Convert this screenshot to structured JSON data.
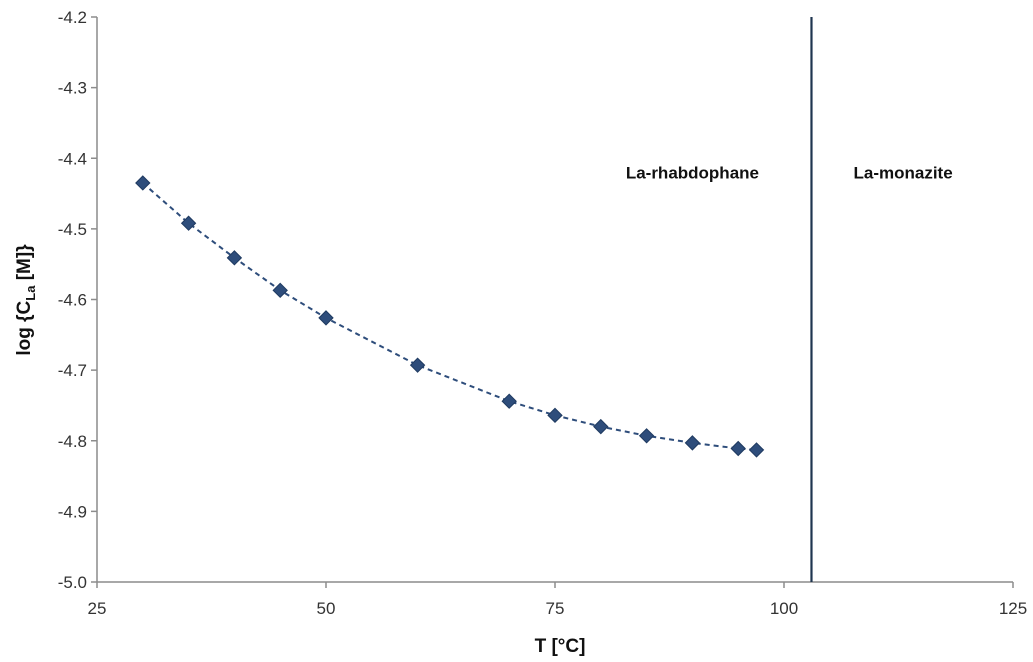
{
  "chart_data": {
    "type": "scatter",
    "title": "",
    "xlabel": "T [°C]",
    "ylabel": {
      "prefix": "log {C",
      "subscript": "La",
      "suffix": " [M]}"
    },
    "xlim": [
      25,
      125
    ],
    "ylim": [
      -5.0,
      -4.2
    ],
    "xticks": [
      25,
      50,
      75,
      100,
      125
    ],
    "yticks": [
      -5.0,
      -4.9,
      -4.8,
      -4.7,
      -4.6,
      -4.5,
      -4.4,
      -4.3,
      -4.2
    ],
    "ytick_labels": [
      "-5.0",
      "-4.9",
      "-4.8",
      "-4.7",
      "-4.6",
      "-4.5",
      "-4.4",
      "-4.3",
      "-4.2"
    ],
    "grid": false,
    "series": [
      {
        "marker": "diamond",
        "line": "dashed",
        "color": "#2e4d7b",
        "x": [
          30,
          35,
          40,
          45,
          50,
          60,
          70,
          75,
          80,
          85,
          90,
          95,
          97
        ],
        "y": [
          -4.435,
          -4.492,
          -4.541,
          -4.587,
          -4.626,
          -4.693,
          -4.744,
          -4.764,
          -4.78,
          -4.793,
          -4.803,
          -4.811,
          -4.813
        ]
      }
    ],
    "vline": {
      "x": 103,
      "color": "#1f3550"
    },
    "region_labels": [
      {
        "text": "La-rhabdophane",
        "x": 90,
        "y": -4.42
      },
      {
        "text": "La-monazite",
        "x": 113,
        "y": -4.42
      }
    ]
  }
}
